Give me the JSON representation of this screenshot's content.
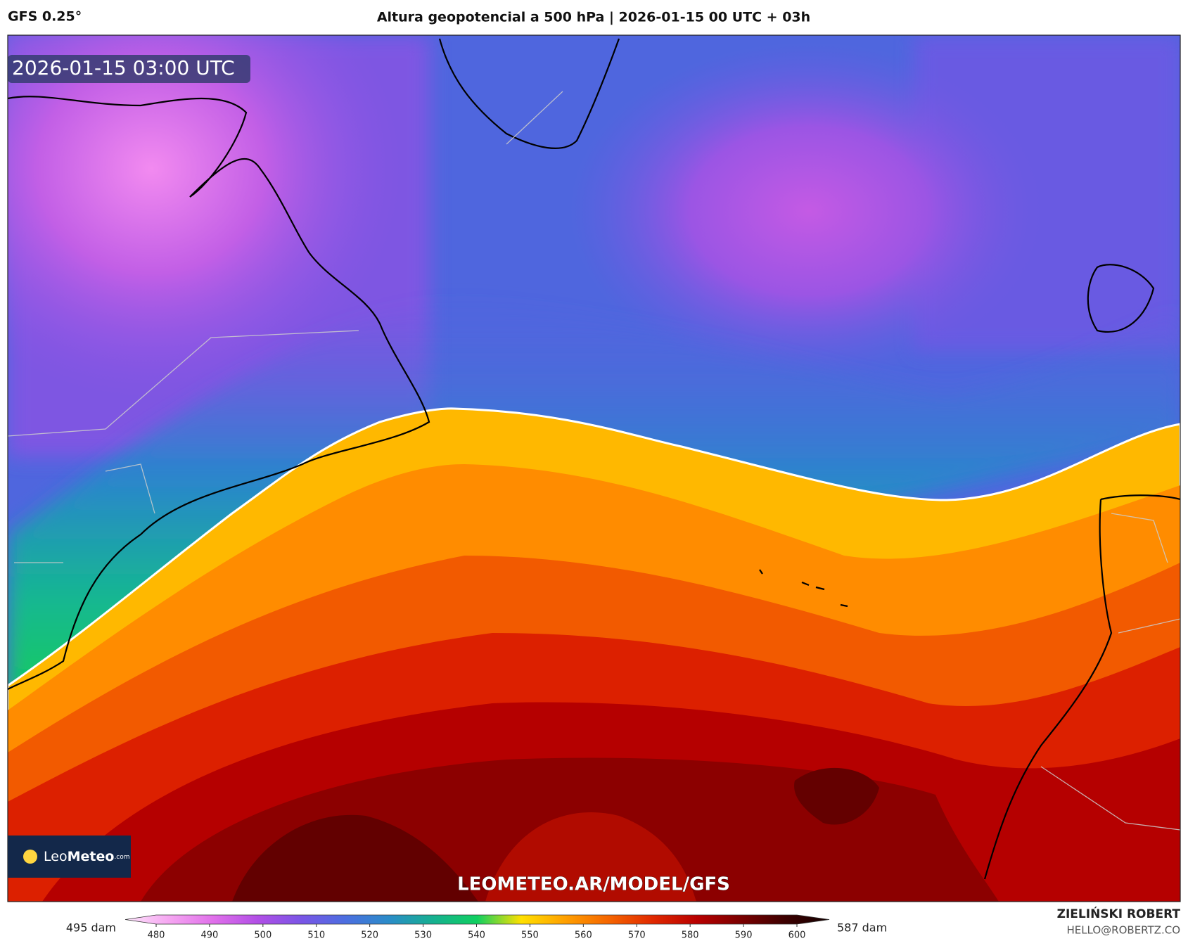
{
  "header": {
    "model": "GFS 0.25°",
    "title": "Altura geopotencial a 500 hPa | 2026-01-15 00 UTC + 03h"
  },
  "map": {
    "timestamp": "2026-01-15 03:00 UTC",
    "url": "LEOMETEO.AR/MODEL/GFS"
  },
  "logo": {
    "leo": "Leo",
    "meteo": "Meteo",
    "suffix": ".com"
  },
  "colorbar": {
    "min_label": "495 dam",
    "max_label": "587 dam",
    "ticks": [
      480,
      490,
      500,
      510,
      520,
      530,
      540,
      550,
      560,
      570,
      580,
      590,
      600
    ],
    "colors": [
      "#fde4fb",
      "#f5a6f1",
      "#e070ea",
      "#b24fe6",
      "#7a55e6",
      "#4c6ee0",
      "#2a8cc8",
      "#16b090",
      "#10d060",
      "#ffe000",
      "#ffa000",
      "#f56400",
      "#e02800",
      "#b80000",
      "#7a0000",
      "#3c0000",
      "#150000"
    ]
  },
  "footer": {
    "author": "ZIELIŃSKI ROBERT",
    "email": "HELLO@ROBERTZ.CO"
  }
}
